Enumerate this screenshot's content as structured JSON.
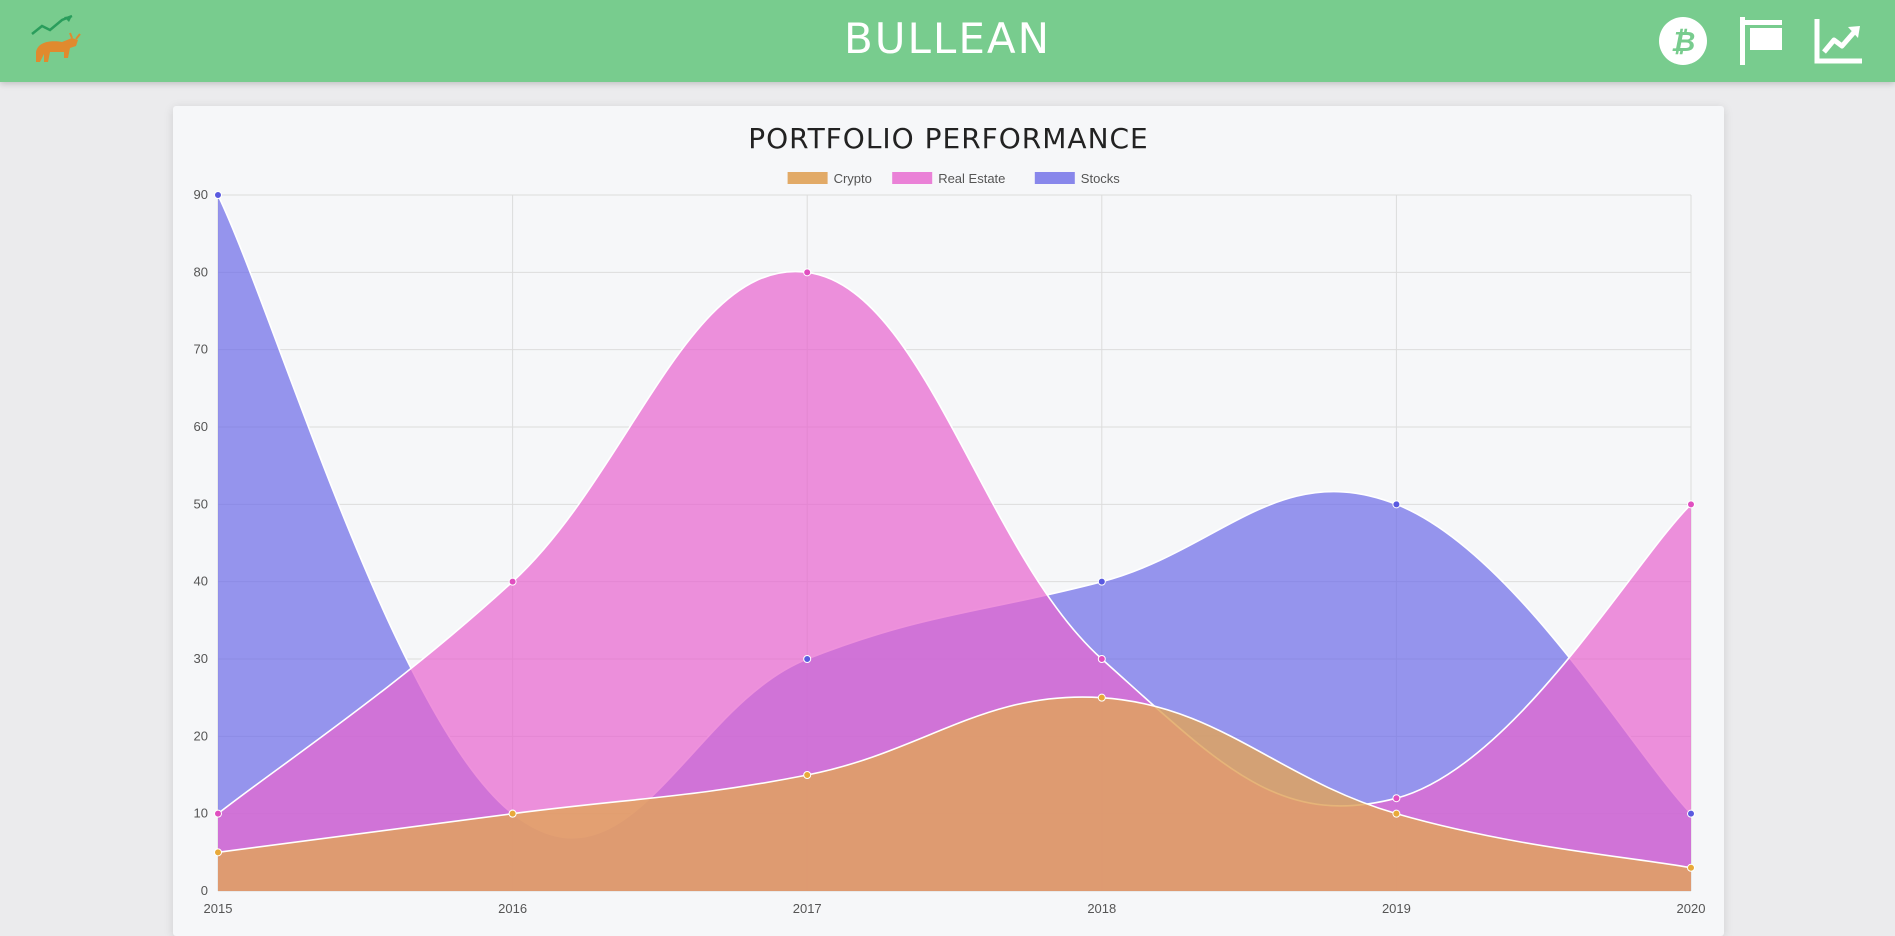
{
  "header": {
    "brand": "BULLEAN",
    "nav": [
      {
        "icon": "bitcoin-icon"
      },
      {
        "icon": "real-estate-sign-icon"
      },
      {
        "icon": "stocks-chart-icon"
      }
    ],
    "logo_icon": "bull-logo-icon"
  },
  "colors": {
    "header_bg": "#78cc8e",
    "crypto": "#e0a35a",
    "real_estate": "#e766cf",
    "stocks": "#6f6ee8"
  },
  "chart_data": {
    "type": "area",
    "title": "PORTFOLIO PERFORMANCE",
    "xlabel": "",
    "ylabel": "",
    "categories": [
      "2015",
      "2016",
      "2017",
      "2018",
      "2019",
      "2020"
    ],
    "ylim": [
      0,
      90
    ],
    "yticks": [
      0,
      10,
      20,
      30,
      40,
      50,
      60,
      70,
      80,
      90
    ],
    "grid": true,
    "legend_position": "top-center",
    "series": [
      {
        "name": "Crypto",
        "values": [
          5,
          10,
          15,
          25,
          10,
          3
        ]
      },
      {
        "name": "Real Estate",
        "values": [
          10,
          40,
          80,
          30,
          12,
          50
        ]
      },
      {
        "name": "Stocks",
        "values": [
          90,
          10,
          30,
          40,
          50,
          10
        ]
      }
    ]
  }
}
